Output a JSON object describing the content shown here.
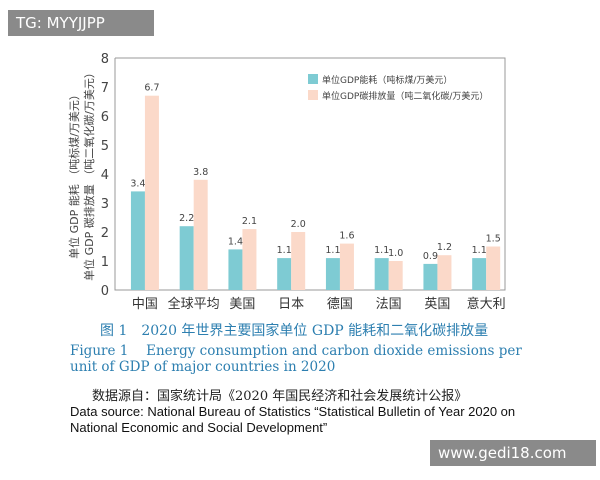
{
  "watermarks": {
    "top_left": "TG: MYYJJPP",
    "bottom_right": "www.gedi18.com"
  },
  "caption": {
    "cn": "图 1　2020 年世界主要国家单位 GDP 能耗和二氧化碳排放量",
    "en": "Figure 1　 Energy consumption and carbon dioxide emissions per unit of GDP of major countries in 2020",
    "source_cn": "数据源自：国家统计局《2020 年国民经济和社会发展统计公报》",
    "source_en": "Data source: National Bureau of Statistics “Statistical Bulletin of Year 2020 on National Economic and Social Development”"
  },
  "chart_data": {
    "type": "bar",
    "ylabel": [
      "单位 GDP 能耗 （吨标煤/万美元）",
      "单位 GDP 碳排放量 （吨二氧化碳/万美元）"
    ],
    "ylim": [
      0,
      8
    ],
    "yticks": [
      "0",
      "1",
      "2",
      "3",
      "4",
      "5",
      "6",
      "7",
      "8"
    ],
    "categories": [
      "中国",
      "全球平均",
      "美国",
      "日本",
      "德国",
      "法国",
      "英国",
      "意大利"
    ],
    "legend_position": "top-right",
    "grid": false,
    "series": [
      {
        "name": "单位GDP能耗（吨标煤/万美元）",
        "color": "#7ecbd3",
        "values": [
          3.4,
          2.2,
          1.4,
          1.1,
          1.1,
          1.1,
          0.9,
          1.1
        ],
        "labels": [
          "3.4",
          "2.2",
          "1.4",
          "1.1",
          "1.1",
          "1.1",
          "0.9",
          "1.1"
        ]
      },
      {
        "name": "单位GDP碳排放量（吨二氧化碳/万美元）",
        "color": "#fbd9c9",
        "values": [
          6.7,
          3.8,
          2.1,
          2.0,
          1.6,
          1.0,
          1.2,
          1.5
        ],
        "labels": [
          "6.7",
          "3.8",
          "2.1",
          "2.0",
          "1.6",
          "1.0",
          "1.2",
          "1.5"
        ]
      }
    ]
  }
}
